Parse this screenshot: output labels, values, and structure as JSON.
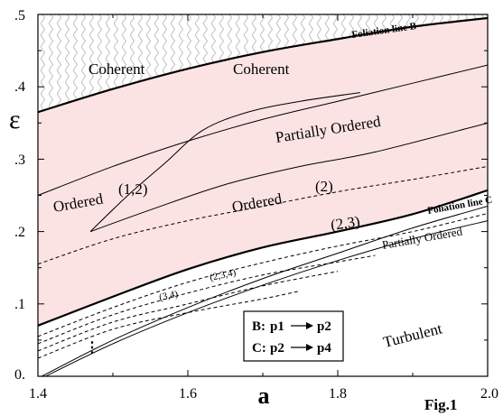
{
  "chart_data": {
    "type": "line",
    "xlabel": "a",
    "ylabel": "ε",
    "xlim": [
      1.4,
      2.0
    ],
    "ylim": [
      0,
      0.5
    ],
    "x_ticks": [
      "1.4",
      "1.6",
      "1.8",
      "2.0"
    ],
    "y_ticks": [
      "0.",
      ".1",
      ".2",
      ".3",
      ".4",
      ".5"
    ],
    "figure_label": "Fig.1",
    "regions": [
      "Coherent",
      "Coherent",
      "Partially Ordered",
      "Ordered",
      "Ordered",
      "Partially Ordered",
      "Turbulent"
    ],
    "cluster_labels": [
      "(1,2)",
      "(2)",
      "(2,3)",
      "(2,3,4)",
      "(3,4)"
    ],
    "dots": "⋮",
    "foliation_labels": [
      "Foliation line B",
      "Foliation line C"
    ],
    "legend": [
      {
        "from": "B:",
        "text_from": "p1",
        "text_to": "p2"
      },
      {
        "from": "C:",
        "text_from": "p2",
        "text_to": "p4"
      }
    ],
    "fill_color": "#fce3e3",
    "curves": [
      {
        "id": "B-top",
        "style": "solid-bold",
        "x": [
          1.4,
          1.5,
          1.6,
          1.7,
          1.8,
          1.9,
          2.0
        ],
        "y": [
          0.365,
          0.397,
          0.425,
          0.448,
          0.466,
          0.483,
          0.495
        ]
      },
      {
        "id": "boundary-1",
        "style": "solid",
        "x": [
          1.4,
          1.5,
          1.6,
          1.7,
          1.8,
          1.9,
          2.0
        ],
        "y": [
          0.25,
          0.29,
          0.325,
          0.355,
          0.38,
          0.405,
          0.43
        ]
      },
      {
        "id": "inner-solid",
        "style": "solid",
        "x": [
          1.47,
          1.55,
          1.65,
          1.75,
          1.85,
          2.0
        ],
        "y": [
          0.2,
          0.23,
          0.265,
          0.29,
          0.31,
          0.35
        ]
      },
      {
        "id": "dashed-1",
        "style": "dashed",
        "x": [
          1.4,
          1.5,
          1.6,
          1.7,
          1.8,
          1.9,
          2.0
        ],
        "y": [
          0.155,
          0.19,
          0.215,
          0.235,
          0.255,
          0.272,
          0.29
        ]
      },
      {
        "id": "C-line",
        "style": "solid-bold",
        "x": [
          1.4,
          1.5,
          1.6,
          1.7,
          1.8,
          1.9,
          2.0
        ],
        "y": [
          0.07,
          0.11,
          0.148,
          0.178,
          0.2,
          0.224,
          0.257
        ]
      },
      {
        "id": "dashed-2",
        "style": "dashed",
        "x": [
          1.4,
          1.5,
          1.6,
          1.7,
          1.8,
          1.9,
          2.0
        ],
        "y": [
          0.055,
          0.095,
          0.13,
          0.157,
          0.18,
          0.2,
          0.225
        ]
      },
      {
        "id": "dashed-3",
        "style": "dashed",
        "x": [
          1.4,
          1.5,
          1.6,
          1.7,
          1.8,
          1.85
        ],
        "y": [
          0.045,
          0.085,
          0.115,
          0.14,
          0.158,
          0.167
        ]
      },
      {
        "id": "dashed-4",
        "style": "dashed",
        "x": [
          1.4,
          1.5,
          1.6,
          1.7,
          1.8
        ],
        "y": [
          0.035,
          0.075,
          0.1,
          0.125,
          0.145
        ]
      },
      {
        "id": "dashed-5",
        "style": "dashed",
        "x": [
          1.4,
          1.5,
          1.6,
          1.7,
          1.75
        ],
        "y": [
          0.025,
          0.065,
          0.088,
          0.107,
          0.118
        ]
      },
      {
        "id": "solid-lower-1",
        "style": "solid",
        "x": [
          1.405,
          1.5,
          1.6,
          1.7,
          1.8,
          1.9,
          2.0
        ],
        "y": [
          0.0,
          0.05,
          0.095,
          0.135,
          0.17,
          0.205,
          0.235
        ]
      },
      {
        "id": "solid-lower-2",
        "style": "solid",
        "x": [
          1.41,
          1.5,
          1.6,
          1.7,
          1.8,
          1.9,
          2.0
        ],
        "y": [
          0.0,
          0.045,
          0.088,
          0.126,
          0.16,
          0.19,
          0.215
        ]
      },
      {
        "id": "cusp-(1,2)",
        "style": "solid",
        "x": [
          1.47,
          1.52,
          1.57,
          1.62,
          1.68,
          1.75,
          1.83
        ],
        "y": [
          0.2,
          0.25,
          0.295,
          0.34,
          0.365,
          0.38,
          0.392
        ]
      }
    ]
  }
}
